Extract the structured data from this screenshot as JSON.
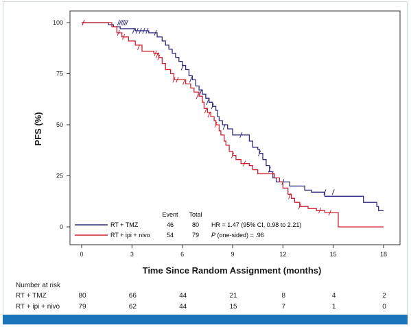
{
  "chart_data": {
    "type": "line",
    "subtype": "kaplan-meier",
    "ylabel": "PFS (%)",
    "xlabel": "Time Since Random Assignment (months)",
    "xlim": [
      0,
      18
    ],
    "ylim": [
      0,
      100
    ],
    "xticks": [
      0,
      3,
      6,
      9,
      12,
      15,
      18
    ],
    "yticks": [
      0,
      25,
      50,
      75,
      100
    ],
    "grid": false,
    "legend_position": "bottom-left",
    "legend_header": {
      "event": "Event",
      "total": "Total"
    },
    "series": [
      {
        "name": "RT + TMZ",
        "color": "#2e2a7e",
        "events": "46",
        "total": "80",
        "points": [
          [
            0,
            100
          ],
          [
            1.4,
            100
          ],
          [
            1.6,
            99
          ],
          [
            1.9,
            98
          ],
          [
            2.3,
            97
          ],
          [
            3.2,
            96
          ],
          [
            4.0,
            95
          ],
          [
            4.5,
            93
          ],
          [
            4.8,
            91
          ],
          [
            5.0,
            89
          ],
          [
            5.2,
            87
          ],
          [
            5.4,
            85
          ],
          [
            5.6,
            83
          ],
          [
            5.8,
            81
          ],
          [
            6.0,
            79
          ],
          [
            6.2,
            77
          ],
          [
            6.4,
            74
          ],
          [
            6.6,
            72
          ],
          [
            6.8,
            69
          ],
          [
            7.0,
            67
          ],
          [
            7.2,
            65
          ],
          [
            7.4,
            63
          ],
          [
            7.6,
            61
          ],
          [
            7.8,
            59
          ],
          [
            8.0,
            57
          ],
          [
            8.1,
            54
          ],
          [
            8.2,
            52
          ],
          [
            8.4,
            50
          ],
          [
            8.7,
            48
          ],
          [
            9.0,
            45
          ],
          [
            9.8,
            45
          ],
          [
            10.0,
            42
          ],
          [
            10.2,
            39
          ],
          [
            10.5,
            38
          ],
          [
            10.6,
            36
          ],
          [
            10.8,
            33
          ],
          [
            11.0,
            30
          ],
          [
            11.2,
            27
          ],
          [
            11.4,
            24
          ],
          [
            11.6,
            22
          ],
          [
            12.2,
            22
          ],
          [
            12.4,
            20
          ],
          [
            13.3,
            18
          ],
          [
            13.7,
            17
          ],
          [
            14.5,
            15
          ],
          [
            16.6,
            15
          ],
          [
            16.8,
            12
          ],
          [
            17.6,
            10
          ],
          [
            17.7,
            8
          ],
          [
            18,
            8
          ]
        ],
        "censors": [
          [
            0.1,
            100
          ],
          [
            2.2,
            100
          ],
          [
            2.3,
            100
          ],
          [
            2.4,
            100
          ],
          [
            2.5,
            100
          ],
          [
            2.6,
            100
          ],
          [
            2.7,
            100
          ],
          [
            3.1,
            96
          ],
          [
            3.3,
            96
          ],
          [
            3.5,
            96
          ],
          [
            3.7,
            96
          ],
          [
            3.9,
            96
          ],
          [
            4.4,
            95
          ],
          [
            6.0,
            78
          ],
          [
            6.5,
            72
          ],
          [
            7.1,
            66
          ],
          [
            7.5,
            61
          ],
          [
            7.8,
            59
          ],
          [
            8.5,
            49
          ],
          [
            9.5,
            45
          ],
          [
            10.6,
            36
          ],
          [
            11.2,
            28
          ],
          [
            12.0,
            22
          ],
          [
            14.5,
            17
          ],
          [
            15.0,
            17
          ]
        ],
        "at_risk": [
          "80",
          "66",
          "44",
          "21",
          "8",
          "4",
          "2"
        ]
      },
      {
        "name": "RT + ipi + nivo",
        "color": "#cf1f2e",
        "events": "54",
        "total": "79",
        "points": [
          [
            0,
            100
          ],
          [
            1.6,
            100
          ],
          [
            1.8,
            98
          ],
          [
            2.1,
            95
          ],
          [
            2.4,
            93
          ],
          [
            2.8,
            91
          ],
          [
            3.2,
            89
          ],
          [
            3.6,
            86
          ],
          [
            4.3,
            85
          ],
          [
            4.6,
            83
          ],
          [
            4.8,
            80
          ],
          [
            5.0,
            77
          ],
          [
            5.3,
            75
          ],
          [
            5.5,
            72
          ],
          [
            6.0,
            72
          ],
          [
            6.2,
            70
          ],
          [
            6.5,
            68
          ],
          [
            6.7,
            66
          ],
          [
            7.0,
            64
          ],
          [
            7.2,
            61
          ],
          [
            7.3,
            58
          ],
          [
            7.5,
            56
          ],
          [
            7.7,
            54
          ],
          [
            7.9,
            52
          ],
          [
            8.0,
            50
          ],
          [
            8.2,
            47
          ],
          [
            8.3,
            45
          ],
          [
            8.5,
            42
          ],
          [
            8.6,
            40
          ],
          [
            8.8,
            37
          ],
          [
            9.0,
            35
          ],
          [
            9.2,
            33
          ],
          [
            9.5,
            31
          ],
          [
            10.0,
            30
          ],
          [
            10.2,
            28
          ],
          [
            10.5,
            26
          ],
          [
            11.2,
            26
          ],
          [
            11.5,
            24
          ],
          [
            11.8,
            22
          ],
          [
            12.0,
            19
          ],
          [
            12.3,
            16
          ],
          [
            12.5,
            14
          ],
          [
            12.7,
            12
          ],
          [
            13.0,
            10
          ],
          [
            13.5,
            9
          ],
          [
            14.0,
            8
          ],
          [
            14.5,
            7
          ],
          [
            15.2,
            7
          ],
          [
            15.3,
            0
          ],
          [
            18,
            0
          ]
        ],
        "censors": [
          [
            0.1,
            100
          ],
          [
            2.2,
            95
          ],
          [
            2.5,
            93
          ],
          [
            3.4,
            88
          ],
          [
            4.4,
            85
          ],
          [
            4.5,
            84
          ],
          [
            4.6,
            83
          ],
          [
            5.5,
            72
          ],
          [
            5.7,
            72
          ],
          [
            6.1,
            71
          ],
          [
            6.9,
            64
          ],
          [
            7.4,
            57
          ],
          [
            7.6,
            55
          ],
          [
            8.0,
            50
          ],
          [
            9.0,
            35
          ],
          [
            9.7,
            31
          ],
          [
            12.4,
            15
          ],
          [
            13.0,
            10
          ],
          [
            14.2,
            8
          ],
          [
            14.8,
            7
          ]
        ],
        "at_risk": [
          "79",
          "62",
          "44",
          "15",
          "7",
          "1",
          "0"
        ]
      }
    ],
    "annotations": {
      "hr": "HR = 1.47 (95% CI, 0.98 to 2.21)",
      "p_italic": "P",
      "p_rest": " (one-sided) = .96"
    },
    "number_at_risk_title": "Number at risk",
    "accent_bar_color": "#1b75bb"
  }
}
